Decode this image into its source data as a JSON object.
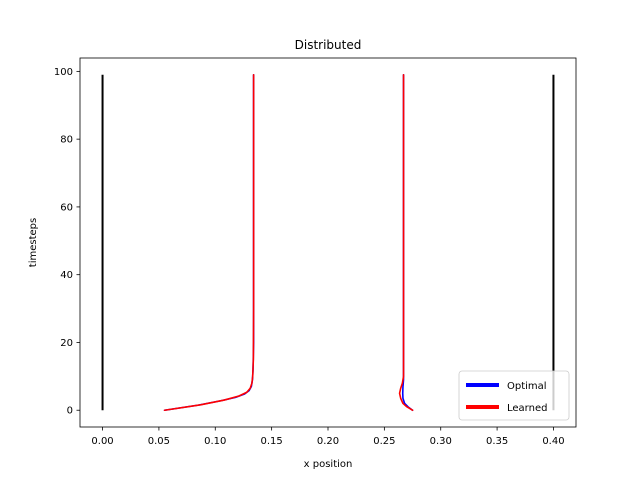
{
  "chart_data": {
    "type": "line",
    "title": "Distributed",
    "xlabel": "x position",
    "ylabel": "timesteps",
    "xlim": [
      -0.02,
      0.42
    ],
    "ylim": [
      -4.95,
      103.95
    ],
    "x_ticks": [
      0.0,
      0.05,
      0.1,
      0.15,
      0.2,
      0.25,
      0.3,
      0.35,
      0.4
    ],
    "x_tick_labels": [
      "0.00",
      "0.05",
      "0.10",
      "0.15",
      "0.20",
      "0.25",
      "0.30",
      "0.35",
      "0.40"
    ],
    "y_ticks": [
      0,
      20,
      40,
      60,
      80,
      100
    ],
    "y_tick_labels": [
      "0",
      "20",
      "40",
      "60",
      "80",
      "100"
    ],
    "grid": false,
    "legend": {
      "placement": "lower-right",
      "entries": [
        {
          "label": "Optimal",
          "color": "#0000ff"
        },
        {
          "label": "Learned",
          "color": "#ff0000"
        }
      ]
    },
    "boundaries": [
      {
        "color": "#000000",
        "points": [
          [
            0.0,
            0
          ],
          [
            0.0,
            99
          ]
        ]
      },
      {
        "color": "#000000",
        "points": [
          [
            0.4,
            0
          ],
          [
            0.4,
            99
          ]
        ]
      }
    ],
    "series": [
      {
        "name": "Optimal",
        "color": "#0000ff",
        "agent": 1,
        "points": [
          [
            0.055,
            0
          ],
          [
            0.085,
            1.5
          ],
          [
            0.105,
            2.8
          ],
          [
            0.118,
            3.8
          ],
          [
            0.126,
            4.8
          ],
          [
            0.13,
            5.8
          ],
          [
            0.132,
            7
          ],
          [
            0.133,
            9
          ],
          [
            0.1335,
            12
          ],
          [
            0.134,
            20
          ],
          [
            0.134,
            99
          ]
        ]
      },
      {
        "name": "Learned",
        "color": "#ff0000",
        "agent": 1,
        "points": [
          [
            0.055,
            0
          ],
          [
            0.087,
            1.6
          ],
          [
            0.108,
            3.0
          ],
          [
            0.121,
            4.2
          ],
          [
            0.128,
            5.3
          ],
          [
            0.131,
            6.5
          ],
          [
            0.1325,
            8
          ],
          [
            0.1332,
            10
          ],
          [
            0.1338,
            15
          ],
          [
            0.134,
            30
          ],
          [
            0.134,
            99
          ]
        ]
      },
      {
        "name": "Optimal",
        "color": "#0000ff",
        "agent": 2,
        "points": [
          [
            0.275,
            0
          ],
          [
            0.271,
            1
          ],
          [
            0.268,
            2
          ],
          [
            0.2665,
            3.5
          ],
          [
            0.2663,
            5
          ],
          [
            0.2665,
            7
          ],
          [
            0.267,
            9
          ],
          [
            0.267,
            12
          ],
          [
            0.267,
            99
          ]
        ]
      },
      {
        "name": "Learned",
        "color": "#ff0000",
        "agent": 2,
        "points": [
          [
            0.275,
            0
          ],
          [
            0.27,
            1
          ],
          [
            0.2665,
            2
          ],
          [
            0.2645,
            3.5
          ],
          [
            0.2635,
            5
          ],
          [
            0.2645,
            6.5
          ],
          [
            0.266,
            8
          ],
          [
            0.267,
            10
          ],
          [
            0.267,
            99
          ]
        ]
      }
    ]
  }
}
